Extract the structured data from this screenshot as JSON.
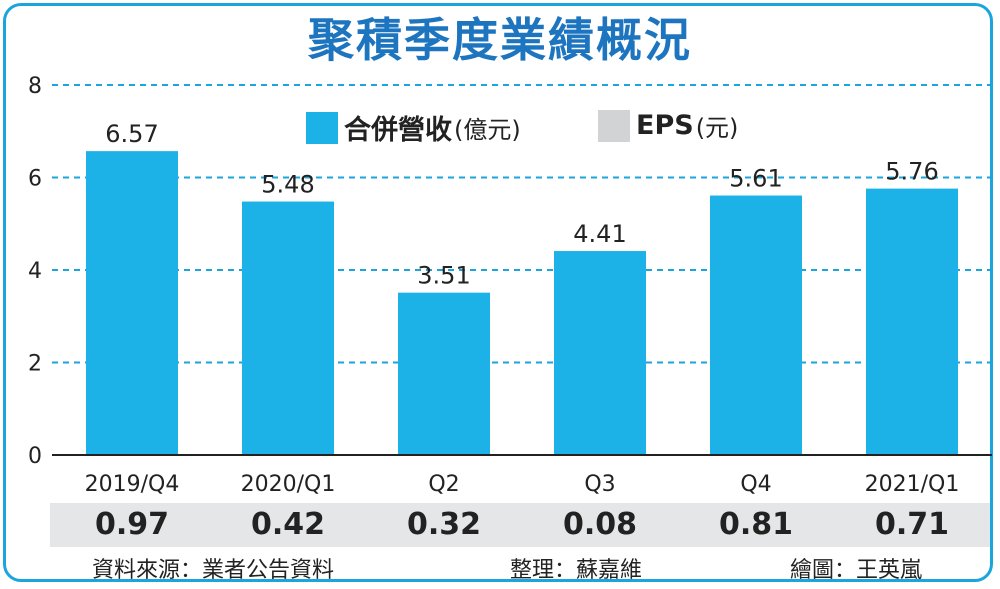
{
  "title": "聚積季度業績概況",
  "legend": {
    "revenue_label": "合併營收",
    "revenue_unit": "(億元)",
    "eps_label": "EPS",
    "eps_unit": "(元)"
  },
  "colors": {
    "revenue_bar": "#1cb2e8",
    "eps_swatch": "#d2d3d5",
    "gridline": "#1aa6dc",
    "title": "#1d75c0"
  },
  "chart_data": {
    "type": "bar",
    "categories": [
      "2019/Q4",
      "2020/Q1",
      "Q2",
      "Q3",
      "Q4",
      "2021/Q1"
    ],
    "series": [
      {
        "name": "合併營收(億元)",
        "values": [
          6.57,
          5.48,
          3.51,
          4.41,
          5.61,
          5.76
        ]
      },
      {
        "name": "EPS(元)",
        "values": [
          0.97,
          0.42,
          0.32,
          0.08,
          0.81,
          0.71
        ]
      }
    ],
    "value_labels": [
      "6.57",
      "5.48",
      "3.51",
      "4.41",
      "5.61",
      "5.76"
    ],
    "eps_labels": [
      "0.97",
      "0.42",
      "0.32",
      "0.08",
      "0.81",
      "0.71"
    ],
    "yticks": [
      "0",
      "2",
      "4",
      "6",
      "8"
    ],
    "ylim": [
      0,
      8
    ],
    "grid": true,
    "legend_position": "top-center"
  },
  "footer": {
    "source": "資料來源：業者公告資料",
    "editor": "整理：蘇嘉維",
    "illustrator": "繪圖：王英嵐"
  }
}
